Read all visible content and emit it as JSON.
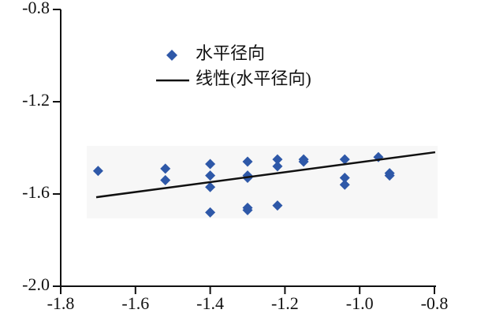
{
  "chart_data": {
    "type": "scatter",
    "series": [
      {
        "name": "水平径向",
        "color": "#2e58a8",
        "type": "scatter",
        "x": [
          -1.7,
          -1.52,
          -1.52,
          -1.4,
          -1.4,
          -1.4,
          -1.4,
          -1.3,
          -1.3,
          -1.3,
          -1.3,
          -1.3,
          -1.22,
          -1.22,
          -1.22,
          -1.15,
          -1.15,
          -1.04,
          -1.04,
          -1.04,
          -0.95,
          -0.92,
          -0.92
        ],
        "values": [
          -1.5,
          -1.49,
          -1.54,
          -1.47,
          -1.52,
          -1.57,
          -1.68,
          -1.46,
          -1.52,
          -1.53,
          -1.66,
          -1.67,
          -1.45,
          -1.48,
          -1.65,
          -1.45,
          -1.46,
          -1.45,
          -1.53,
          -1.56,
          -1.44,
          -1.51,
          -1.52
        ]
      },
      {
        "name": "线性(水平径向)",
        "color": "#111111",
        "type": "line",
        "x": [
          -1.705,
          -0.798
        ],
        "values": [
          -1.614,
          -1.419
        ]
      }
    ],
    "xlim": [
      -1.8,
      -0.8
    ],
    "xticks": [
      -1.8,
      -1.6,
      -1.4,
      -1.2,
      {
        "value": -1,
        "label": "-1.0"
      },
      -0.8
    ],
    "ylim": [
      -2,
      -0.8
    ],
    "yticks": [
      {
        "value": -2,
        "label": "-2.0"
      },
      -1.6,
      -1.2,
      -0.8
    ],
    "grid": false
  }
}
